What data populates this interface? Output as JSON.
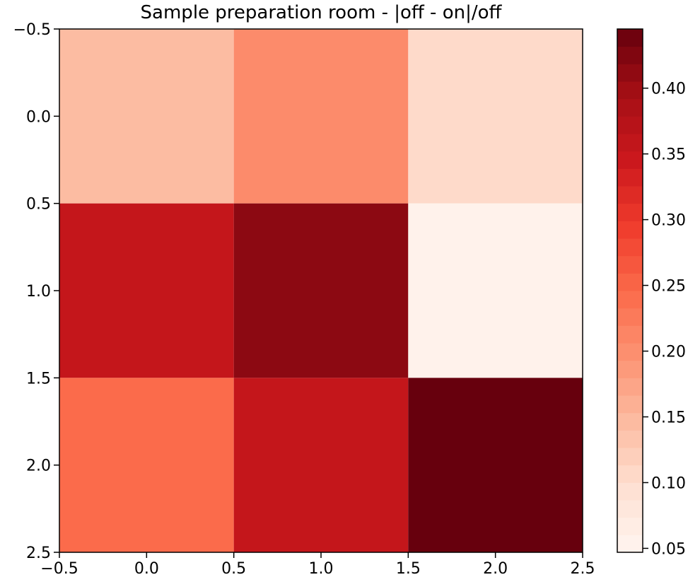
{
  "chart_data": {
    "type": "heatmap",
    "title": "Sample preparation room - |off - on|/off",
    "xlabel": "",
    "ylabel": "",
    "colormap": "Reds",
    "rows": [
      0,
      1,
      2
    ],
    "cols": [
      0,
      1,
      2
    ],
    "values": [
      [
        0.145,
        0.205,
        0.105
      ],
      [
        0.355,
        0.415,
        0.055
      ],
      [
        0.245,
        0.355,
        0.445
      ]
    ],
    "xlim": [
      -0.5,
      2.5
    ],
    "ylim": [
      2.5,
      -0.5
    ],
    "x_ticks": [
      "−0.5",
      "0.0",
      "0.5",
      "1.0",
      "1.5",
      "2.0",
      "2.5"
    ],
    "y_ticks": [
      "−0.5",
      "0.0",
      "0.5",
      "1.0",
      "1.5",
      "2.0",
      "2.5"
    ],
    "colorbar": {
      "min": 0.047,
      "max": 0.445,
      "ticks": [
        "0.05",
        "0.10",
        "0.15",
        "0.20",
        "0.25",
        "0.30",
        "0.35",
        "0.40"
      ]
    },
    "grid": false
  }
}
